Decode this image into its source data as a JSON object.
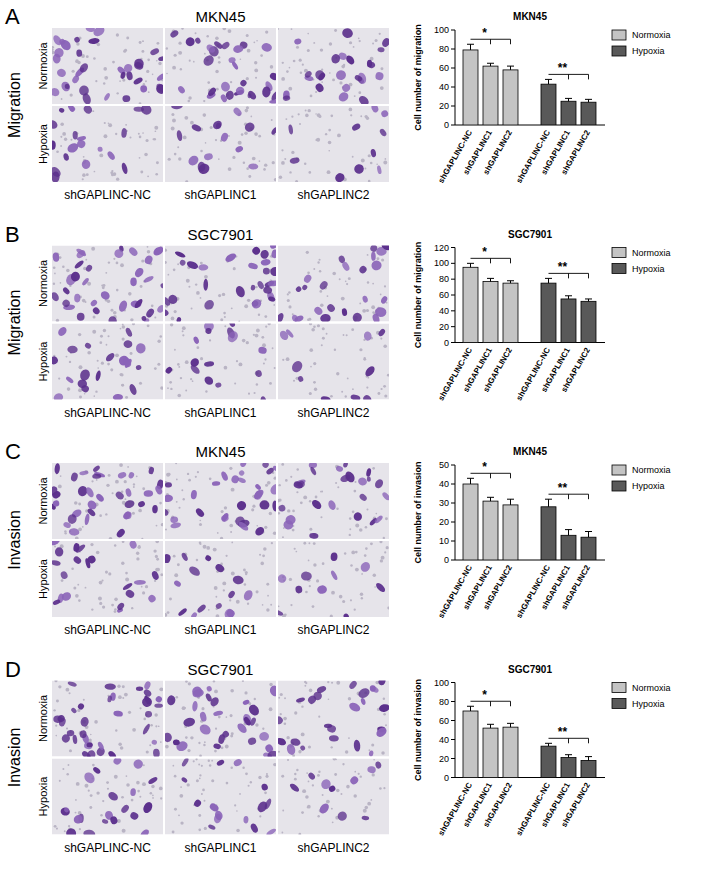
{
  "image_panels": [
    {
      "letter": "A",
      "assay": "Migration",
      "title": "MKN45",
      "rows": [
        "Normoxia",
        "Hypoxia"
      ],
      "columns": [
        "shGAPLINC-NC",
        "shGAPLINC1",
        "shGAPLINC2"
      ]
    },
    {
      "letter": "B",
      "assay": "Migration",
      "title": "SGC7901",
      "rows": [
        "Normoxia",
        "Hypoxia"
      ],
      "columns": [
        "shGAPLINC-NC",
        "shGAPLINC1",
        "shGAPLINC2"
      ]
    },
    {
      "letter": "C",
      "assay": "Invasion",
      "title": "MKN45",
      "rows": [
        "Normoxia",
        "Hypoxia"
      ],
      "columns": [
        "shGAPLINC-NC",
        "shGAPLINC1",
        "shGAPLINC2"
      ]
    },
    {
      "letter": "D",
      "assay": "Invasion",
      "title": "SGC7901",
      "rows": [
        "Normoxia",
        "Hypoxia"
      ],
      "columns": [
        "shGAPLINC-NC",
        "shGAPLINC1",
        "shGAPLINC2"
      ]
    }
  ],
  "chart_data": [
    {
      "type": "bar",
      "title": "MKN45",
      "y_label": "Cell number of migration",
      "categories": [
        "shGAPLINC-NC",
        "shGAPLINC1",
        "shGAPLINC2",
        "shGAPLINC-NC",
        "shGAPLINC1",
        "shGAPLINC2"
      ],
      "series": [
        {
          "name": "Normoxia",
          "color": "#c4c4c4",
          "values": [
            79,
            62,
            58,
            null,
            null,
            null
          ],
          "errors": [
            6,
            3,
            4,
            null,
            null,
            null
          ]
        },
        {
          "name": "Hypoxia",
          "color": "#595959",
          "values": [
            null,
            null,
            null,
            43,
            25,
            24
          ],
          "errors": [
            null,
            null,
            null,
            5,
            3,
            3
          ]
        }
      ],
      "annotations": [
        "*",
        "**"
      ],
      "ylim": [
        0,
        100
      ],
      "yticks": [
        0,
        20,
        40,
        60,
        80,
        100
      ],
      "legend": "right"
    },
    {
      "type": "bar",
      "title": "SGC7901",
      "y_label": "Cell number of migration",
      "categories": [
        "shGAPLINC-NC",
        "shGAPLINC1",
        "shGAPLINC2",
        "shGAPLINC-NC",
        "shGAPLINC1",
        "shGAPLINC2"
      ],
      "series": [
        {
          "name": "Normoxia",
          "color": "#c4c4c4",
          "values": [
            95,
            77,
            75,
            null,
            null,
            null
          ],
          "errors": [
            5,
            4,
            3,
            null,
            null,
            null
          ]
        },
        {
          "name": "Hypoxia",
          "color": "#595959",
          "values": [
            null,
            null,
            null,
            75,
            55,
            52
          ],
          "errors": [
            null,
            null,
            null,
            6,
            4,
            3
          ]
        }
      ],
      "annotations": [
        "*",
        "**"
      ],
      "ylim": [
        0,
        120
      ],
      "yticks": [
        0,
        20,
        40,
        60,
        80,
        100,
        120
      ],
      "legend": "right"
    },
    {
      "type": "bar",
      "title": "MKN45",
      "y_label": "Cell number of invasion",
      "categories": [
        "shGAPLINC-NC",
        "shGAPLINC1",
        "shGAPLINC2",
        "shGAPLINC-NC",
        "shGAPLINC1",
        "shGAPLINC2"
      ],
      "series": [
        {
          "name": "Normoxia",
          "color": "#c4c4c4",
          "values": [
            40,
            31,
            29,
            null,
            null,
            null
          ],
          "errors": [
            3,
            2,
            3,
            null,
            null,
            null
          ]
        },
        {
          "name": "Hypoxia",
          "color": "#595959",
          "values": [
            null,
            null,
            null,
            28,
            13,
            12
          ],
          "errors": [
            null,
            null,
            null,
            4,
            3,
            3
          ]
        }
      ],
      "annotations": [
        "*",
        "**"
      ],
      "ylim": [
        0,
        50
      ],
      "yticks": [
        0,
        10,
        20,
        30,
        40,
        50
      ],
      "legend": "right"
    },
    {
      "type": "bar",
      "title": "SGC7901",
      "y_label": "Cell number of invasion",
      "categories": [
        "shGAPLINC-NC",
        "shGAPLINC1",
        "shGAPLINC2",
        "shGAPLINC-NC",
        "shGAPLINC1",
        "shGAPLINC2"
      ],
      "series": [
        {
          "name": "Normoxia",
          "color": "#c4c4c4",
          "values": [
            70,
            52,
            53,
            null,
            null,
            null
          ],
          "errors": [
            5,
            4,
            4,
            null,
            null,
            null
          ]
        },
        {
          "name": "Hypoxia",
          "color": "#595959",
          "values": [
            null,
            null,
            null,
            33,
            21,
            18
          ],
          "errors": [
            null,
            null,
            null,
            3,
            3,
            4
          ]
        }
      ],
      "annotations": [
        "*",
        "**"
      ],
      "ylim": [
        0,
        100
      ],
      "yticks": [
        0,
        20,
        40,
        60,
        80,
        100
      ],
      "legend": "right"
    }
  ]
}
